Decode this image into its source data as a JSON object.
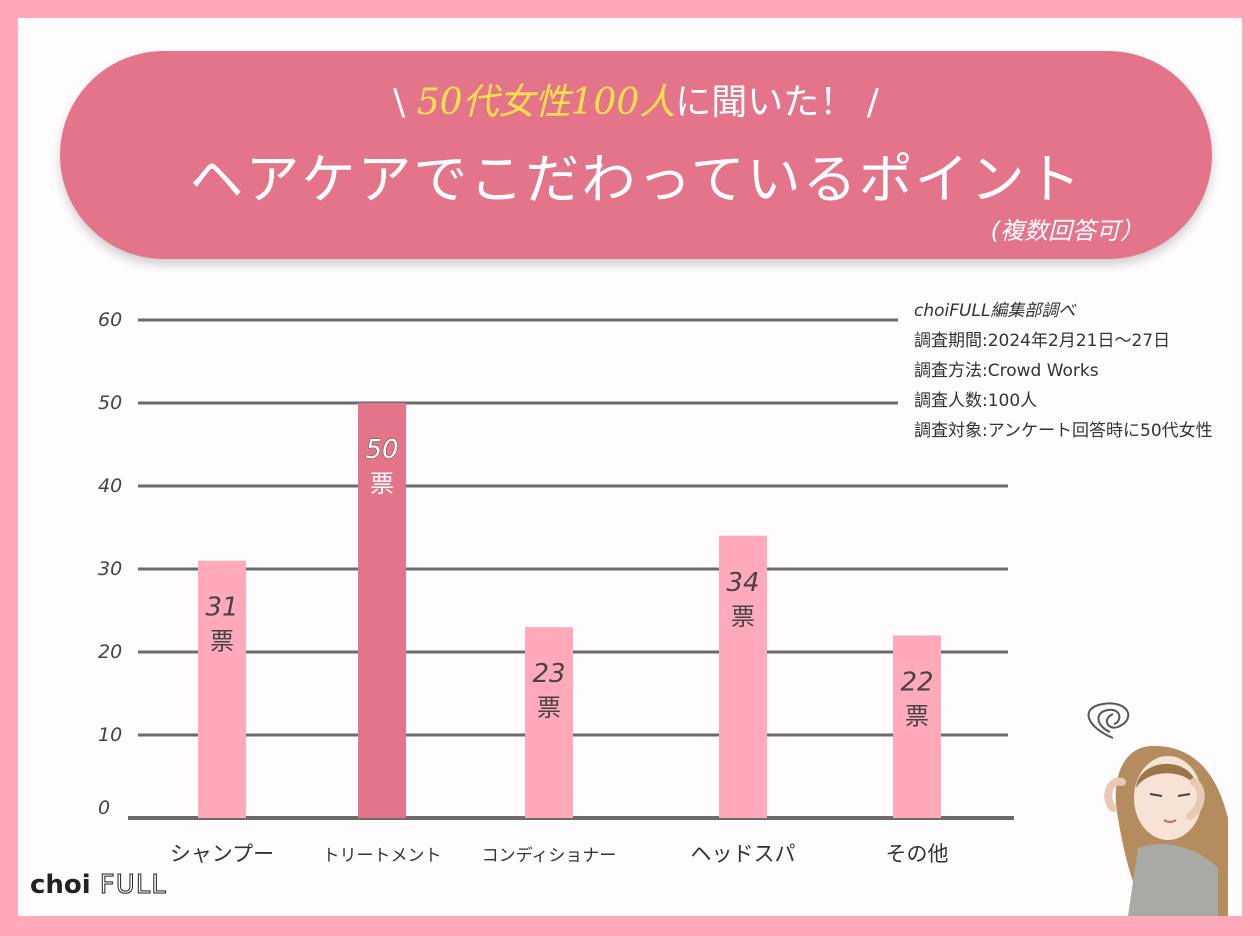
{
  "banner": {
    "line1_pre": "\\ ",
    "line1_hl1": "50代女性100人",
    "line1_mid": "に聞いた！",
    "line1_post": " /",
    "title": "ヘアケアでこだわっているポイント",
    "note": "(複数回答可）"
  },
  "source": {
    "line1": "choiFULL編集部調べ",
    "line2": "調査期間:2024年2月21日〜27日",
    "line3": "調査方法:Crowd Works",
    "line4": "調査人数:100人",
    "line5": "調査対象:アンケート回答時に50代女性"
  },
  "logo": {
    "brand": "choi",
    "suffix": "FULL"
  },
  "colors": {
    "bar": "#ffa9bb",
    "bar_highlight": "#e47489",
    "grid": "#6b6b6b",
    "accent": "#ffe04a"
  },
  "chart_data": {
    "type": "bar",
    "categories": [
      "シャンプー",
      "トリートメント",
      "コンディショナー",
      "ヘッドスパ",
      "その他"
    ],
    "values": [
      31,
      50,
      23,
      34,
      22
    ],
    "value_labels": [
      "31",
      "50",
      "23",
      "34",
      "22"
    ],
    "unit_label": "票",
    "highlight_index": 1,
    "yticks": [
      "0",
      "10",
      "20",
      "30",
      "40",
      "50",
      "60"
    ],
    "ylim": [
      0,
      60
    ],
    "grid": true
  }
}
